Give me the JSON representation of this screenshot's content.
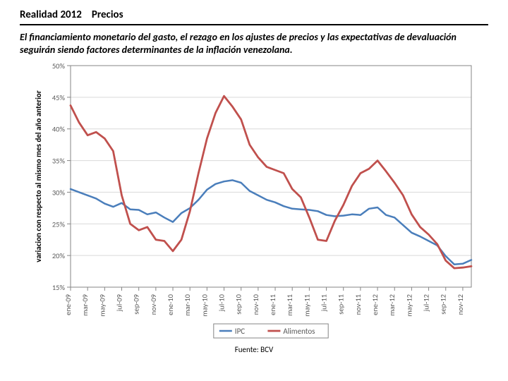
{
  "header": {
    "title_left": "Realidad 2012",
    "title_right": "Precios"
  },
  "subtitle": "El financiamiento monetario del gasto,  el rezago en los ajustes de precios  y las expectativas de devaluación seguirán siendo factores determinantes de la inflación venezolana.",
  "footer": "Fuente: BCV",
  "chart": {
    "type": "line",
    "background_color": "#ffffff",
    "plot_border_color": "#868686",
    "grid_color": "#d9d9d9",
    "axis_label": "variacion con respecto al mismo mes del año anterior",
    "axis_label_fontsize": 11,
    "tick_fontsize": 10.5,
    "tick_color": "#595959",
    "ylim": [
      15,
      50
    ],
    "ytick_step": 5,
    "ytick_labels": [
      "15%",
      "20%",
      "25%",
      "30%",
      "35%",
      "40%",
      "45%",
      "50%"
    ],
    "categories": [
      "ene-09",
      "mar-09",
      "may-09",
      "jul-09",
      "sep-09",
      "nov-09",
      "ene-10",
      "mar-10",
      "may-10",
      "jul-10",
      "sep-10",
      "nov-10",
      "ene-11",
      "mar-11",
      "may-11",
      "jul-11",
      "sep-11",
      "nov-11",
      "ene-12",
      "mar-12",
      "may-12",
      "jul-12",
      "sep-12",
      "nov-12"
    ],
    "n_points": 48,
    "series": [
      {
        "name": "IPC",
        "color": "#4a7ebb",
        "width": 2.5,
        "values": [
          30.5,
          30,
          29.5,
          29,
          28.2,
          27.7,
          28.3,
          27.3,
          27.2,
          26.5,
          26.8,
          26,
          25.3,
          26.7,
          27.5,
          28.8,
          30.4,
          31.3,
          31.7,
          31.9,
          31.5,
          30.2,
          29.5,
          28.8,
          28.4,
          27.8,
          27.4,
          27.3,
          27.2,
          27,
          26.4,
          26.2,
          26.3,
          26.5,
          26.4,
          27.4,
          27.6,
          26.4,
          26,
          24.8,
          23.6,
          23,
          22.3,
          21.6,
          19.9,
          18.6,
          18.7,
          19.3
        ]
      },
      {
        "name": "Alimentos",
        "color": "#c0504d",
        "width": 2.8,
        "values": [
          43.7,
          41,
          39,
          39.5,
          38.5,
          36.5,
          29.5,
          25,
          24,
          24.5,
          22.5,
          22.3,
          20.7,
          22.5,
          27,
          33,
          38.5,
          42.5,
          45.2,
          43.5,
          41.5,
          37.5,
          35.5,
          34,
          33.5,
          33,
          30.5,
          29.2,
          26,
          22.5,
          22.3,
          25.5,
          28,
          31,
          33,
          33.7,
          35,
          33.3,
          31.5,
          29.5,
          26.5,
          24.5,
          23.3,
          21.8,
          19.2,
          18,
          18.1,
          18.3
        ]
      }
    ],
    "legend": {
      "position": "bottom",
      "fontsize": 11,
      "marker_width": 18
    }
  }
}
